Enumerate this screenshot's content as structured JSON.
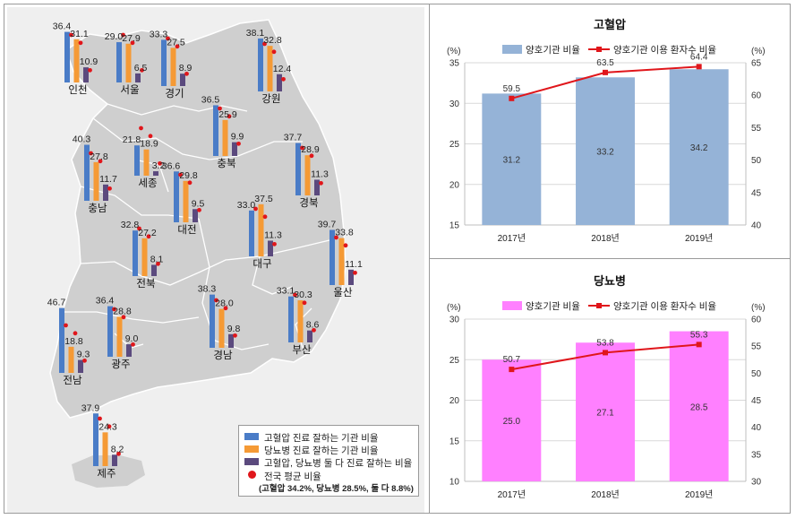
{
  "map": {
    "legend": {
      "items": [
        {
          "label": "고혈압 진료 잘하는 기관 비율",
          "color": "#4a7cc7"
        },
        {
          "label": "당뇨병 진료 잘하는 기관 비율",
          "color": "#f59a35"
        },
        {
          "label": "고혈압, 당뇨병 둘 다 진료 잘하는 비율",
          "color": "#5b4a7e"
        }
      ],
      "dot_label": "전국 평균 비율",
      "dot_sub": "(고혈압 34.2%, 당뇨병 28.5%, 둘 다 8.8%)",
      "dot_color": "#e0161b"
    },
    "regions": [
      {
        "name": "인천",
        "values": [
          36.4,
          31.1,
          10.9
        ]
      },
      {
        "name": "서울",
        "values": [
          29.0,
          27.9,
          6.5
        ]
      },
      {
        "name": "경기",
        "values": [
          33.3,
          27.5,
          8.9
        ]
      },
      {
        "name": "강원",
        "values": [
          38.1,
          32.8,
          12.4
        ]
      },
      {
        "name": "충남",
        "values": [
          40.3,
          27.8,
          11.7
        ]
      },
      {
        "name": "세종",
        "values": [
          21.8,
          18.9,
          3.2
        ]
      },
      {
        "name": "충북",
        "values": [
          36.5,
          25.9,
          9.9
        ]
      },
      {
        "name": "대전",
        "values": [
          36.6,
          29.8,
          9.5
        ]
      },
      {
        "name": "경북",
        "values": [
          37.7,
          28.9,
          11.3
        ]
      },
      {
        "name": "전북",
        "values": [
          32.8,
          27.2,
          8.1
        ]
      },
      {
        "name": "대구",
        "values": [
          33.0,
          37.5,
          11.3
        ]
      },
      {
        "name": "울산",
        "values": [
          39.7,
          33.8,
          11.1
        ]
      },
      {
        "name": "경남",
        "values": [
          38.3,
          28.0,
          9.8
        ]
      },
      {
        "name": "부산",
        "values": [
          33.1,
          30.3,
          8.6
        ]
      },
      {
        "name": "전남",
        "values": [
          46.7,
          18.8,
          9.3
        ]
      },
      {
        "name": "광주",
        "values": [
          36.4,
          28.8,
          9.0
        ]
      },
      {
        "name": "제주",
        "values": [
          37.9,
          24.3,
          8.2
        ]
      }
    ]
  },
  "chart_data": [
    {
      "type": "bar",
      "title": "고혈압",
      "categories": [
        "2017년",
        "2018년",
        "2019년"
      ],
      "series": [
        {
          "name": "양호기관 비율",
          "values": [
            31.2,
            33.2,
            34.2
          ],
          "color": "#95b3d7",
          "axis": "left"
        },
        {
          "name": "양호기관 이용 환자수 비율",
          "values": [
            59.5,
            63.5,
            64.4
          ],
          "color": "#e0161b",
          "axis": "right",
          "kind": "line"
        }
      ],
      "ylabel": "(%)",
      "ylabel_right": "(%)",
      "ylim": [
        15,
        35
      ],
      "ylim_right": [
        40,
        65
      ],
      "yticks": [
        15,
        20,
        25,
        30,
        35
      ],
      "yticks_right": [
        40,
        45,
        50,
        55,
        60,
        65
      ],
      "grid": true,
      "legend_position": "top"
    },
    {
      "type": "bar",
      "title": "당뇨병",
      "categories": [
        "2017년",
        "2018년",
        "2019년"
      ],
      "series": [
        {
          "name": "양호기관 비율",
          "values": [
            25.0,
            27.1,
            28.5
          ],
          "color": "#ff80ff",
          "axis": "left"
        },
        {
          "name": "양호기관 이용 환자수 비율",
          "values": [
            50.7,
            53.8,
            55.3
          ],
          "color": "#e0161b",
          "axis": "right",
          "kind": "line"
        }
      ],
      "ylabel": "(%)",
      "ylabel_right": "(%)",
      "ylim": [
        10,
        30
      ],
      "ylim_right": [
        30,
        60
      ],
      "yticks": [
        10,
        15,
        20,
        25,
        30
      ],
      "yticks_right": [
        30,
        35,
        40,
        45,
        50,
        55,
        60
      ],
      "grid": true,
      "legend_position": "top"
    }
  ]
}
